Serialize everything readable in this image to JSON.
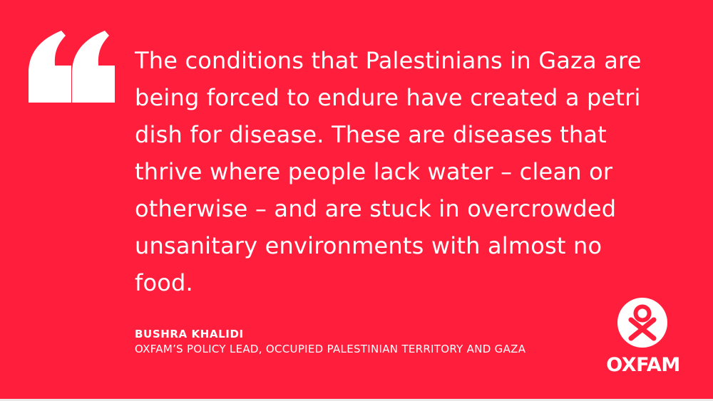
{
  "colors": {
    "background": "#ff1f3c",
    "text": "#ffffff",
    "frame": "#e9e9e9"
  },
  "quote": {
    "mark_icon": "open-quote-icon",
    "text": "The conditions that Palestinians in Gaza are\nbeing forced to endure have created a petri\ndish for disease. These are diseases that\nthrive where people lack water – clean or\notherwise – and are stuck in overcrowded\nunsanitary environments with almost no\nfood."
  },
  "attribution": {
    "name": "BUSHRA KHALIDI",
    "role": "OXFAM’S POLICY LEAD, OCCUPIED PALESTINIAN TERRITORY AND GAZA"
  },
  "brand": {
    "logo_icon": "oxfam-logo-icon",
    "name": "OXFAM"
  }
}
